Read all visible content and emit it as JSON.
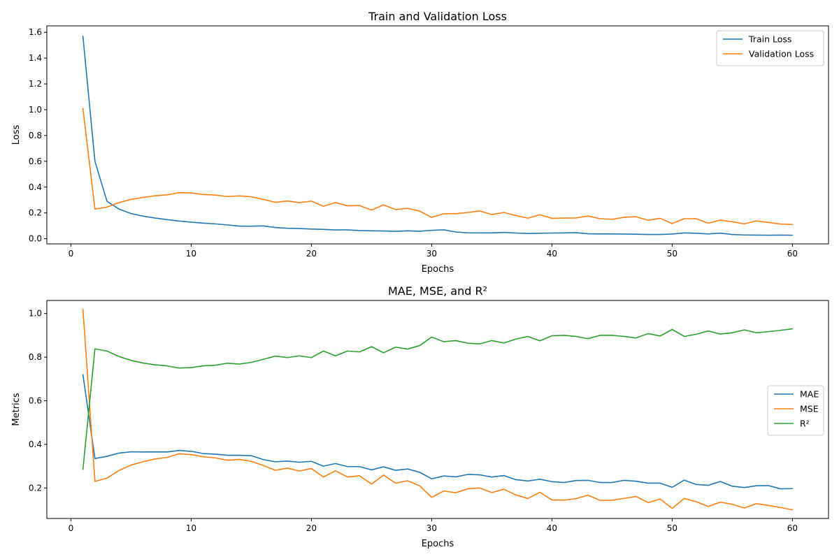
{
  "chart_data": [
    {
      "type": "line",
      "title": "Train and Validation Loss",
      "xlabel": "Epochs",
      "ylabel": "Loss",
      "xlim": [
        -2,
        63
      ],
      "ylim": [
        -0.04,
        1.65
      ],
      "xticks": [
        0,
        10,
        20,
        30,
        40,
        50,
        60
      ],
      "yticks": [
        0.0,
        0.2,
        0.4,
        0.6,
        0.8,
        1.0,
        1.2,
        1.4,
        1.6
      ],
      "ytick_decimals": 1,
      "grid": false,
      "legend_position": "upper-right",
      "x": [
        1,
        2,
        3,
        4,
        5,
        6,
        7,
        8,
        9,
        10,
        11,
        12,
        13,
        14,
        15,
        16,
        17,
        18,
        19,
        20,
        21,
        22,
        23,
        24,
        25,
        26,
        27,
        28,
        29,
        30,
        31,
        32,
        33,
        34,
        35,
        36,
        37,
        38,
        39,
        40,
        41,
        42,
        43,
        44,
        45,
        46,
        47,
        48,
        49,
        50,
        51,
        52,
        53,
        54,
        55,
        56,
        57,
        58,
        59,
        60
      ],
      "series": [
        {
          "name": "Train Loss",
          "color": "#1f77b4",
          "values": [
            1.57,
            0.6,
            0.29,
            0.23,
            0.195,
            0.175,
            0.16,
            0.148,
            0.137,
            0.128,
            0.121,
            0.115,
            0.107,
            0.098,
            0.097,
            0.099,
            0.087,
            0.081,
            0.079,
            0.075,
            0.072,
            0.068,
            0.069,
            0.063,
            0.061,
            0.06,
            0.057,
            0.061,
            0.058,
            0.065,
            0.069,
            0.052,
            0.046,
            0.045,
            0.045,
            0.049,
            0.044,
            0.04,
            0.042,
            0.044,
            0.045,
            0.047,
            0.038,
            0.037,
            0.037,
            0.036,
            0.035,
            0.033,
            0.033,
            0.036,
            0.045,
            0.042,
            0.037,
            0.043,
            0.033,
            0.029,
            0.028,
            0.027,
            0.028,
            0.027
          ]
        },
        {
          "name": "Validation Loss",
          "color": "#ff7f0e",
          "values": [
            1.01,
            0.23,
            0.245,
            0.28,
            0.305,
            0.32,
            0.333,
            0.34,
            0.357,
            0.355,
            0.343,
            0.338,
            0.327,
            0.332,
            0.325,
            0.305,
            0.282,
            0.292,
            0.28,
            0.291,
            0.251,
            0.28,
            0.255,
            0.257,
            0.222,
            0.262,
            0.226,
            0.235,
            0.214,
            0.165,
            0.194,
            0.194,
            0.203,
            0.215,
            0.187,
            0.203,
            0.18,
            0.159,
            0.186,
            0.158,
            0.16,
            0.161,
            0.176,
            0.155,
            0.151,
            0.166,
            0.17,
            0.143,
            0.158,
            0.118,
            0.155,
            0.155,
            0.12,
            0.144,
            0.131,
            0.115,
            0.138,
            0.126,
            0.114,
            0.11
          ]
        }
      ]
    },
    {
      "type": "line",
      "title": "MAE, MSE, and R²",
      "xlabel": "Epochs",
      "ylabel": "Metrics",
      "xlim": [
        -2,
        63
      ],
      "ylim": [
        0.06,
        1.06
      ],
      "xticks": [
        0,
        10,
        20,
        30,
        40,
        50,
        60
      ],
      "yticks": [
        0.2,
        0.4,
        0.6,
        0.8,
        1.0
      ],
      "ytick_decimals": 1,
      "grid": false,
      "legend_position": "center-right",
      "x": [
        1,
        2,
        3,
        4,
        5,
        6,
        7,
        8,
        9,
        10,
        11,
        12,
        13,
        14,
        15,
        16,
        17,
        18,
        19,
        20,
        21,
        22,
        23,
        24,
        25,
        26,
        27,
        28,
        29,
        30,
        31,
        32,
        33,
        34,
        35,
        36,
        37,
        38,
        39,
        40,
        41,
        42,
        43,
        44,
        45,
        46,
        47,
        48,
        49,
        50,
        51,
        52,
        53,
        54,
        55,
        56,
        57,
        58,
        59,
        60
      ],
      "series": [
        {
          "name": "MAE",
          "color": "#1f77b4",
          "values": [
            0.72,
            0.335,
            0.345,
            0.36,
            0.366,
            0.365,
            0.365,
            0.365,
            0.372,
            0.368,
            0.358,
            0.355,
            0.35,
            0.35,
            0.348,
            0.33,
            0.32,
            0.323,
            0.318,
            0.322,
            0.3,
            0.312,
            0.298,
            0.298,
            0.283,
            0.297,
            0.281,
            0.287,
            0.272,
            0.242,
            0.255,
            0.251,
            0.262,
            0.26,
            0.25,
            0.257,
            0.238,
            0.232,
            0.24,
            0.229,
            0.225,
            0.234,
            0.235,
            0.225,
            0.225,
            0.235,
            0.231,
            0.222,
            0.222,
            0.203,
            0.236,
            0.216,
            0.212,
            0.23,
            0.208,
            0.202,
            0.21,
            0.211,
            0.196,
            0.197
          ]
        },
        {
          "name": "MSE",
          "color": "#ff7f0e",
          "values": [
            1.02,
            0.23,
            0.245,
            0.28,
            0.305,
            0.32,
            0.333,
            0.34,
            0.357,
            0.353,
            0.343,
            0.338,
            0.327,
            0.331,
            0.322,
            0.303,
            0.281,
            0.291,
            0.278,
            0.289,
            0.25,
            0.279,
            0.25,
            0.256,
            0.218,
            0.259,
            0.222,
            0.233,
            0.21,
            0.157,
            0.186,
            0.178,
            0.196,
            0.2,
            0.179,
            0.194,
            0.168,
            0.152,
            0.18,
            0.145,
            0.144,
            0.151,
            0.167,
            0.143,
            0.144,
            0.152,
            0.161,
            0.133,
            0.149,
            0.106,
            0.152,
            0.137,
            0.115,
            0.135,
            0.125,
            0.108,
            0.128,
            0.12,
            0.11,
            0.1
          ]
        },
        {
          "name": "R²",
          "color": "#2ca02c",
          "values": [
            0.285,
            0.838,
            0.828,
            0.803,
            0.785,
            0.773,
            0.765,
            0.76,
            0.75,
            0.752,
            0.76,
            0.763,
            0.772,
            0.768,
            0.776,
            0.79,
            0.805,
            0.798,
            0.806,
            0.798,
            0.828,
            0.806,
            0.828,
            0.824,
            0.848,
            0.82,
            0.846,
            0.837,
            0.853,
            0.892,
            0.871,
            0.876,
            0.864,
            0.861,
            0.876,
            0.865,
            0.883,
            0.895,
            0.875,
            0.898,
            0.9,
            0.895,
            0.885,
            0.9,
            0.9,
            0.895,
            0.888,
            0.908,
            0.897,
            0.927,
            0.895,
            0.905,
            0.92,
            0.906,
            0.912,
            0.925,
            0.912,
            0.917,
            0.923,
            0.93
          ]
        }
      ]
    }
  ]
}
